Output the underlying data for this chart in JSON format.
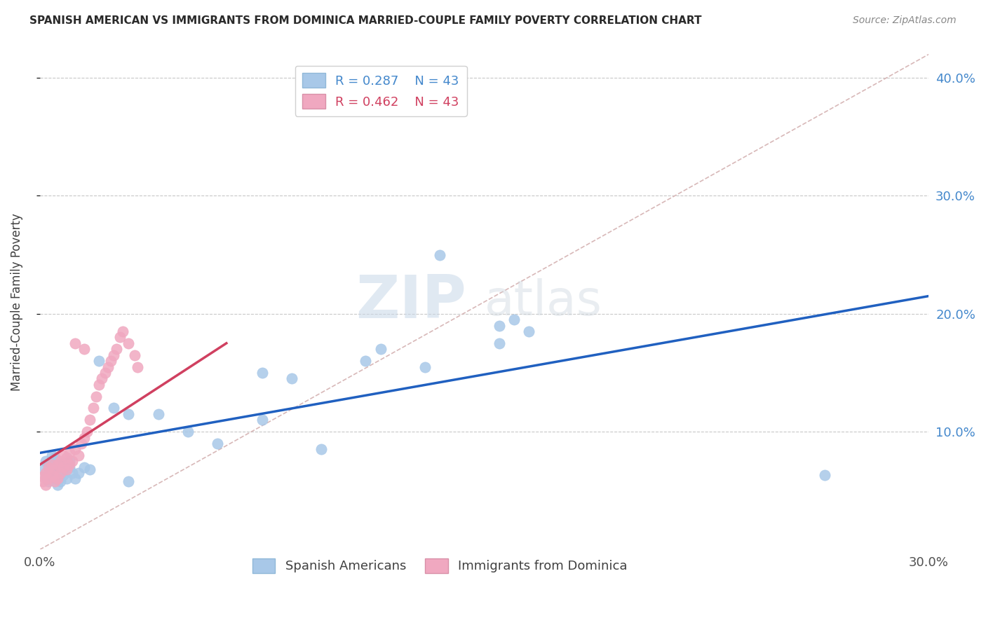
{
  "title": "SPANISH AMERICAN VS IMMIGRANTS FROM DOMINICA MARRIED-COUPLE FAMILY POVERTY CORRELATION CHART",
  "source": "Source: ZipAtlas.com",
  "ylabel": "Married-Couple Family Poverty",
  "xlim": [
    0.0,
    0.3
  ],
  "ylim": [
    0.0,
    0.42
  ],
  "r_blue": 0.287,
  "r_pink": 0.462,
  "n_blue": 43,
  "n_pink": 43,
  "blue_color": "#a8c8e8",
  "pink_color": "#f0a8c0",
  "trend_blue_color": "#2060c0",
  "trend_pink_color": "#d04060",
  "diagonal_color": "#d8b8b8",
  "watermark_zip": "ZIP",
  "watermark_atlas": "atlas",
  "blue_scatter_x": [
    0.001,
    0.002,
    0.002,
    0.003,
    0.003,
    0.004,
    0.004,
    0.005,
    0.005,
    0.006,
    0.006,
    0.007,
    0.007,
    0.008,
    0.008,
    0.009,
    0.01,
    0.01,
    0.011,
    0.012,
    0.013,
    0.015,
    0.017,
    0.02,
    0.025,
    0.03,
    0.04,
    0.05,
    0.06,
    0.075,
    0.085,
    0.095,
    0.11,
    0.13,
    0.155,
    0.16,
    0.165,
    0.155,
    0.115,
    0.075,
    0.135,
    0.265,
    0.03
  ],
  "blue_scatter_y": [
    0.068,
    0.062,
    0.075,
    0.058,
    0.072,
    0.065,
    0.08,
    0.06,
    0.078,
    0.055,
    0.07,
    0.058,
    0.073,
    0.063,
    0.068,
    0.06,
    0.075,
    0.07,
    0.065,
    0.06,
    0.065,
    0.07,
    0.068,
    0.16,
    0.12,
    0.115,
    0.115,
    0.1,
    0.09,
    0.11,
    0.145,
    0.085,
    0.16,
    0.155,
    0.19,
    0.195,
    0.185,
    0.175,
    0.17,
    0.15,
    0.25,
    0.063,
    0.058
  ],
  "pink_scatter_x": [
    0.001,
    0.001,
    0.002,
    0.002,
    0.003,
    0.003,
    0.004,
    0.004,
    0.005,
    0.005,
    0.006,
    0.006,
    0.007,
    0.007,
    0.008,
    0.008,
    0.009,
    0.009,
    0.01,
    0.01,
    0.011,
    0.012,
    0.013,
    0.014,
    0.015,
    0.016,
    0.017,
    0.018,
    0.019,
    0.02,
    0.021,
    0.022,
    0.023,
    0.024,
    0.025,
    0.026,
    0.027,
    0.028,
    0.03,
    0.032,
    0.033,
    0.012,
    0.015
  ],
  "pink_scatter_y": [
    0.058,
    0.062,
    0.055,
    0.065,
    0.06,
    0.07,
    0.063,
    0.072,
    0.058,
    0.068,
    0.06,
    0.072,
    0.065,
    0.075,
    0.07,
    0.08,
    0.068,
    0.078,
    0.072,
    0.082,
    0.075,
    0.085,
    0.08,
    0.09,
    0.095,
    0.1,
    0.11,
    0.12,
    0.13,
    0.14,
    0.145,
    0.15,
    0.155,
    0.16,
    0.165,
    0.17,
    0.18,
    0.185,
    0.175,
    0.165,
    0.155,
    0.175,
    0.17
  ],
  "blue_trend_x": [
    0.0,
    0.3
  ],
  "blue_trend_y": [
    0.082,
    0.215
  ],
  "pink_trend_x": [
    0.0,
    0.063
  ],
  "pink_trend_y": [
    0.072,
    0.175
  ]
}
